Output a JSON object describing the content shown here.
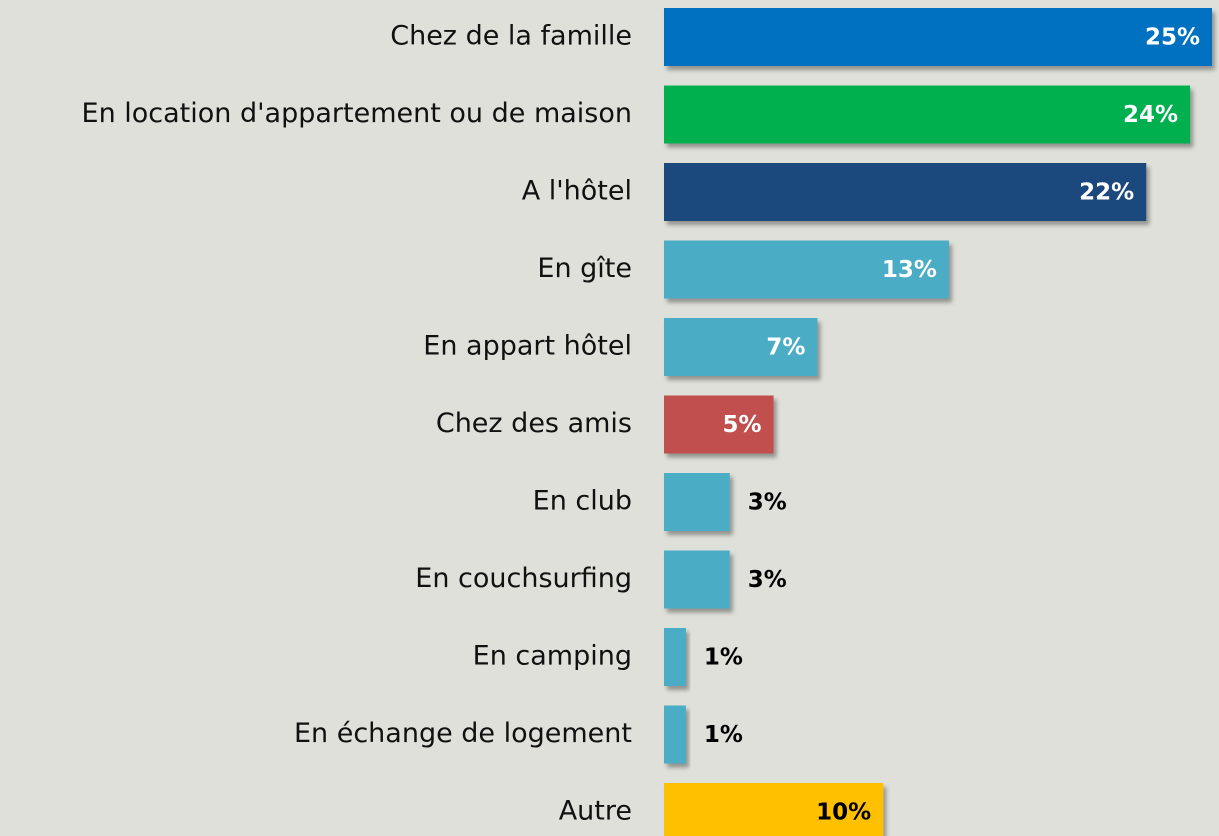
{
  "chart_data": {
    "type": "bar",
    "orientation": "horizontal",
    "categories": [
      "Chez de la famille",
      "En location d'appartement ou de maison",
      "A l'hôtel",
      "En gîte",
      "En appart hôtel",
      "Chez des amis",
      "En club",
      "En couchsurfing",
      "En camping",
      "En échange de logement",
      "Autre"
    ],
    "values": [
      25,
      24,
      22,
      13,
      7,
      5,
      3,
      3,
      1,
      1,
      10
    ],
    "value_labels": [
      "25%",
      "24%",
      "22%",
      "13%",
      "7%",
      "5%",
      "3%",
      "3%",
      "1%",
      "1%",
      "10%"
    ],
    "colors": [
      "#0070c0",
      "#00b050",
      "#1f497d",
      "#4bacc6",
      "#4bacc6",
      "#c0504d",
      "#4bacc6",
      "#4bacc6",
      "#4bacc6",
      "#4bacc6",
      "#ffc000"
    ]
  }
}
